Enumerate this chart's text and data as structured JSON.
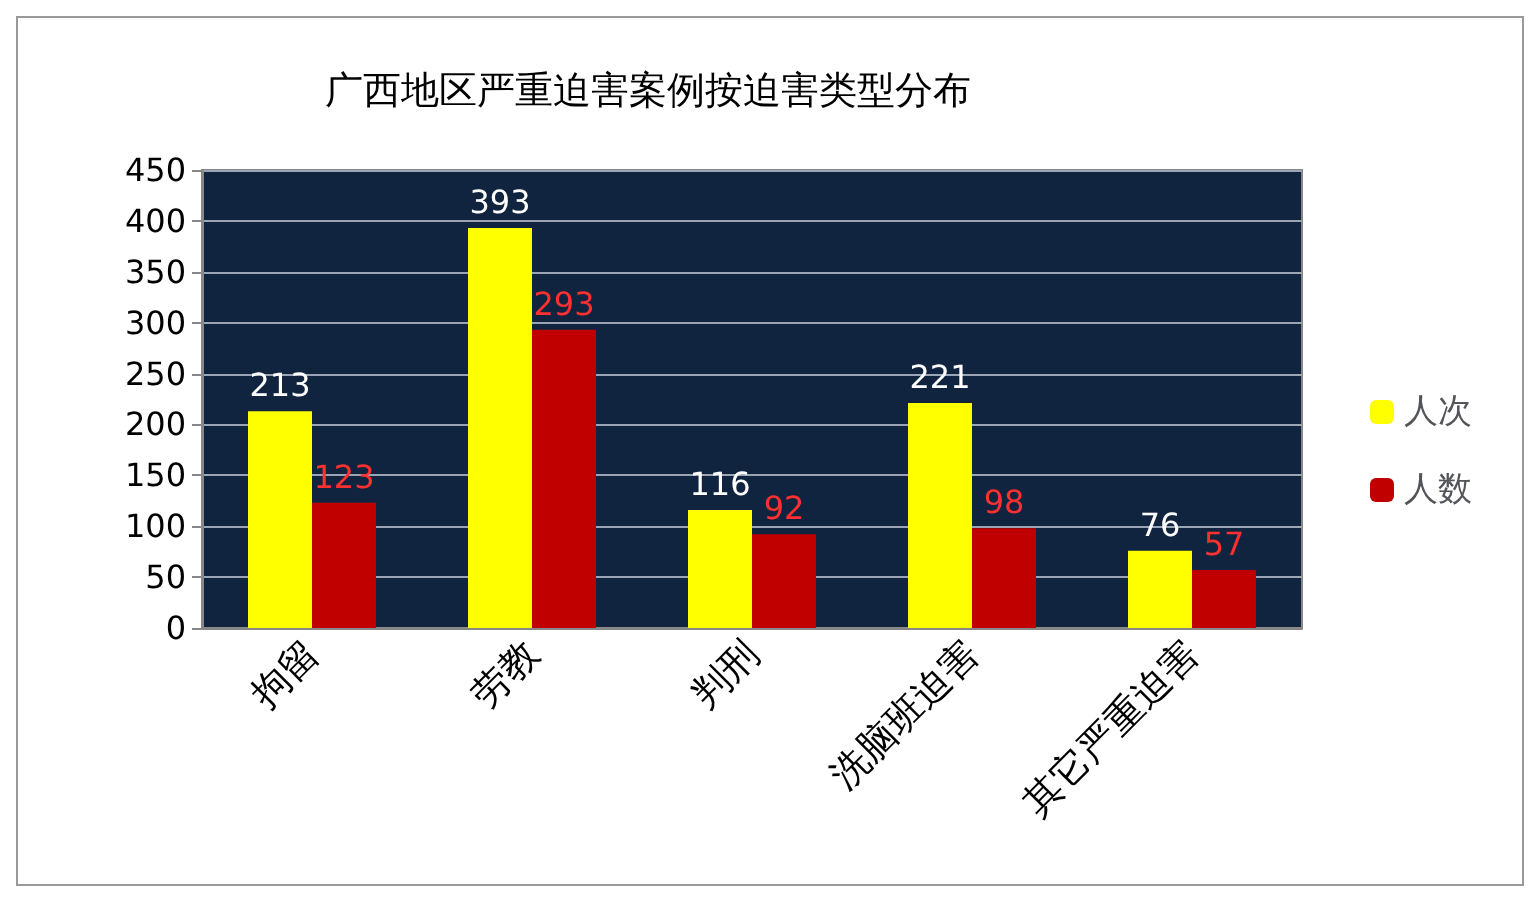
{
  "chart_data": {
    "type": "bar",
    "title": "广西地区严重迫害案例按迫害类型分布",
    "categories": [
      "拘留",
      "劳教",
      "判刑",
      "洗脑班迫害",
      "其它严重迫害"
    ],
    "series": [
      {
        "name": "人次",
        "color": "#ffff00",
        "values": [
          213,
          393,
          116,
          221,
          76
        ]
      },
      {
        "name": "人数",
        "color": "#c00000",
        "values": [
          123,
          293,
          92,
          98,
          57
        ]
      }
    ],
    "ylim": [
      0,
      450
    ],
    "yticks": [
      0,
      50,
      100,
      150,
      200,
      250,
      300,
      350,
      400,
      450
    ],
    "grid": "y",
    "legend": "right",
    "data_labels": true
  }
}
